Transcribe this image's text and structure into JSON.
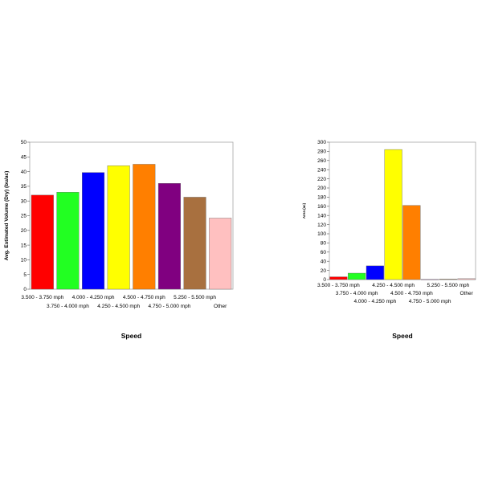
{
  "chart_data": [
    {
      "type": "bar",
      "title": "",
      "xlabel": "Speed",
      "ylabel": "Avg. Estimated Volume (Dry) (bu/ac)",
      "ylim": [
        0,
        50
      ],
      "yticks": [
        0,
        5,
        10,
        15,
        20,
        25,
        30,
        35,
        40,
        45,
        50
      ],
      "categories": [
        "3.500 - 3.750 mph",
        "3.750 - 4.000 mph",
        "4.000 - 4.250 mph",
        "4.250 - 4.500 mph",
        "4.500 - 4.750 mph",
        "4.750 - 5.000 mph",
        "5.250 - 5.500 mph",
        "Other"
      ],
      "values": [
        32,
        33,
        39.7,
        42,
        42.5,
        36,
        31.3,
        24.2
      ],
      "colors": [
        "#ff0000",
        "#22ff22",
        "#0000ff",
        "#ffff00",
        "#ff7f00",
        "#800080",
        "#a8703f",
        "#ffc0c0"
      ],
      "grid": false,
      "legend": "none"
    },
    {
      "type": "bar",
      "title": "",
      "xlabel": "Speed",
      "ylabel": "Area (ac)",
      "ylim": [
        0,
        300
      ],
      "yticks": [
        0,
        20,
        40,
        60,
        80,
        100,
        120,
        140,
        160,
        180,
        200,
        220,
        240,
        260,
        280,
        300
      ],
      "categories": [
        "3.500 - 3.750 mph",
        "3.750 - 4.000 mph",
        "4.000 - 4.250 mph",
        "4.250 - 4.500 mph",
        "4.500 - 4.750 mph",
        "4.750 - 5.000 mph",
        "5.250 - 5.500 mph",
        "Other"
      ],
      "values": [
        6,
        14,
        30,
        284,
        162,
        0.5,
        1,
        2
      ],
      "colors": [
        "#ff0000",
        "#22ff22",
        "#0000ff",
        "#ffff00",
        "#ff7f00",
        "#800080",
        "#a8703f",
        "#ffc0c0"
      ],
      "grid": false,
      "legend": "none"
    }
  ]
}
